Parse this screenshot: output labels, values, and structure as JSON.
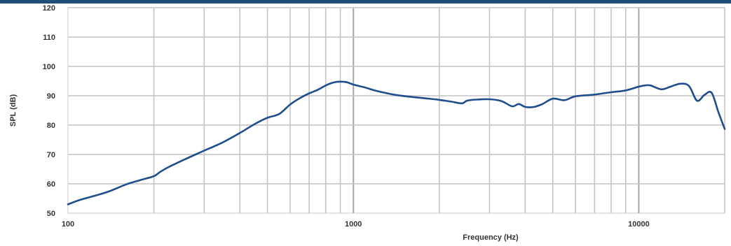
{
  "chart_data": {
    "type": "line",
    "xscale": "log",
    "xlim": [
      100,
      20000
    ],
    "ylim": [
      50,
      120
    ],
    "xlabel": "Frequency (Hz)",
    "ylabel": "SPL (dB)",
    "x_ticks": [
      100,
      1000,
      10000
    ],
    "x_tick_labels": [
      "100",
      "1000",
      "10000"
    ],
    "y_ticks": [
      50,
      60,
      70,
      80,
      90,
      100,
      110,
      120
    ],
    "y_tick_labels": [
      "50",
      "60",
      "70",
      "80",
      "90",
      "100",
      "110",
      "120"
    ],
    "grid": {
      "horizontal": true,
      "vertical_log_minor": true
    },
    "line_color": "#1f4e8c",
    "series": [
      {
        "x": [
          100,
          110,
          125,
          140,
          160,
          180,
          200,
          210,
          225,
          250,
          280,
          300,
          350,
          400,
          450,
          500,
          550,
          600,
          650,
          700,
          750,
          800,
          850,
          900,
          950,
          1000,
          1100,
          1200,
          1400,
          1600,
          1800,
          2000,
          2200,
          2400,
          2500,
          2700,
          3000,
          3300,
          3600,
          3800,
          4000,
          4300,
          4600,
          5000,
          5500,
          6000,
          7000,
          8000,
          9000,
          10000,
          10500,
          11000,
          12000,
          13000,
          14000,
          15000,
          16000,
          17000,
          18000,
          19000,
          20000
        ],
        "y": [
          53,
          54.5,
          56,
          57.5,
          59.8,
          61.3,
          62.6,
          64,
          65.7,
          67.8,
          70,
          71.3,
          74.2,
          77.3,
          80.3,
          82.5,
          83.8,
          87,
          89.2,
          90.8,
          92,
          93.5,
          94.5,
          94.8,
          94.6,
          93.8,
          92.8,
          91.7,
          90.3,
          89.6,
          89.1,
          88.6,
          88,
          87.4,
          88.3,
          88.7,
          88.8,
          88.2,
          86.4,
          87.2,
          86.2,
          86.2,
          87.2,
          89,
          88.5,
          89.8,
          90.4,
          91.2,
          91.8,
          93.1,
          93.5,
          93.5,
          92.2,
          93.2,
          94.1,
          93.3,
          88.3,
          90.3,
          91,
          84.5,
          78.7
        ]
      }
    ]
  }
}
